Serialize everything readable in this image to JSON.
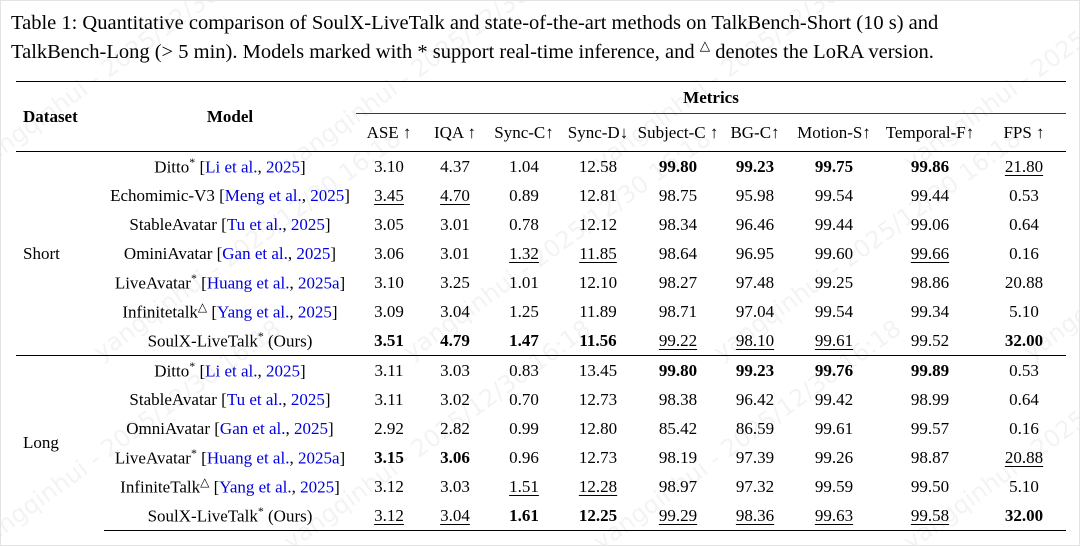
{
  "caption": {
    "segments": [
      {
        "text": "Table 1:  Quantitative comparison of SoulX-LiveTalk and state-of-the-art methods on TalkBench-Short (10 s) and"
      },
      {
        "br": true
      },
      {
        "text": "TalkBench-Long (> 5 min). Models marked with "
      },
      {
        "text": "*",
        "sup": false
      },
      {
        "text": " support real-time inference, and "
      },
      {
        "text": "△",
        "sup": true
      },
      {
        "text": " denotes the LoRA version."
      }
    ]
  },
  "watermark": {
    "text": "yangqinhui - 2025/12/30 16:18"
  },
  "colors": {
    "citation_blue": "#0000dd",
    "rule_black": "#000000"
  },
  "table": {
    "corner_headers": {
      "dataset": "Dataset",
      "model": "Model"
    },
    "metrics_group_label": "Metrics",
    "metric_columns": [
      "ASE ↑",
      "IQA ↑",
      "Sync-C↑",
      "Sync-D↓",
      "Subject-C ↑",
      "BG-C↑",
      "Motion-S↑",
      "Temporal-F↑",
      "FPS ↑"
    ],
    "blocks": [
      {
        "dataset": "Short",
        "rows": [
          {
            "model": "Ditto",
            "sup": "*",
            "cite": {
              "name": "Li et al.",
              "year": "2025"
            },
            "values": [
              "3.10",
              "4.37",
              "1.04",
              "12.58",
              "99.80",
              "99.23",
              "99.75",
              "99.86",
              "21.80"
            ],
            "styles": [
              "",
              "",
              "",
              "",
              "b",
              "b",
              "b",
              "b",
              "u"
            ]
          },
          {
            "model": "Echomimic-V3",
            "sup": "",
            "cite": {
              "name": "Meng et al.",
              "year": "2025"
            },
            "values": [
              "3.45",
              "4.70",
              "0.89",
              "12.81",
              "98.75",
              "95.98",
              "99.54",
              "99.44",
              "0.53"
            ],
            "styles": [
              "u",
              "u",
              "",
              "",
              "",
              "",
              "",
              "",
              ""
            ]
          },
          {
            "model": "StableAvatar",
            "sup": "",
            "cite": {
              "name": "Tu et al.",
              "year": "2025"
            },
            "values": [
              "3.05",
              "3.01",
              "0.78",
              "12.12",
              "98.34",
              "96.46",
              "99.44",
              "99.06",
              "0.64"
            ],
            "styles": [
              "",
              "",
              "",
              "",
              "",
              "",
              "",
              "",
              ""
            ]
          },
          {
            "model": "OminiAvatar",
            "sup": "",
            "cite": {
              "name": "Gan et al.",
              "year": "2025"
            },
            "values": [
              "3.06",
              "3.01",
              "1.32",
              "11.85",
              "98.64",
              "96.95",
              "99.60",
              "99.66",
              "0.16"
            ],
            "styles": [
              "",
              "",
              "u",
              "u",
              "",
              "",
              "",
              "u",
              ""
            ]
          },
          {
            "model": "LiveAvatar",
            "sup": "*",
            "cite": {
              "name": "Huang et al.",
              "year": "2025a"
            },
            "values": [
              "3.10",
              "3.25",
              "1.01",
              "12.10",
              "98.27",
              "97.48",
              "99.25",
              "98.86",
              "20.88"
            ],
            "styles": [
              "",
              "",
              "",
              "",
              "",
              "",
              "",
              "",
              ""
            ]
          },
          {
            "model": "Infinitetalk",
            "sup": "△",
            "cite": {
              "name": "Yang et al.",
              "year": "2025"
            },
            "values": [
              "3.09",
              "3.04",
              "1.25",
              "11.89",
              "98.71",
              "97.04",
              "99.54",
              "99.34",
              "5.10"
            ],
            "styles": [
              "",
              "",
              "",
              "",
              "",
              "",
              "",
              "",
              ""
            ]
          },
          {
            "model": "SoulX-LiveTalk",
            "sup": "*",
            "suffix": "(Ours)",
            "values": [
              "3.51",
              "4.79",
              "1.47",
              "11.56",
              "99.22",
              "98.10",
              "99.61",
              "99.52",
              "32.00"
            ],
            "styles": [
              "b",
              "b",
              "b",
              "b",
              "u",
              "u",
              "u",
              "",
              "b"
            ]
          }
        ]
      },
      {
        "dataset": "Long",
        "rows": [
          {
            "model": "Ditto",
            "sup": "*",
            "cite": {
              "name": "Li et al.",
              "year": "2025"
            },
            "values": [
              "3.11",
              "3.03",
              "0.83",
              "13.45",
              "99.80",
              "99.23",
              "99.76",
              "99.89",
              "0.53"
            ],
            "styles": [
              "",
              "",
              "",
              "",
              "b",
              "b",
              "b",
              "b",
              ""
            ]
          },
          {
            "model": "StableAvatar",
            "sup": "",
            "cite": {
              "name": "Tu et al.",
              "year": "2025"
            },
            "values": [
              "3.11",
              "3.02",
              "0.70",
              "12.73",
              "98.38",
              "96.42",
              "99.42",
              "98.99",
              "0.64"
            ],
            "styles": [
              "",
              "",
              "",
              "",
              "",
              "",
              "",
              "",
              ""
            ]
          },
          {
            "model": "OmniAvatar",
            "sup": "",
            "cite": {
              "name": "Gan et al.",
              "year": "2025"
            },
            "values": [
              "2.92",
              "2.82",
              "0.99",
              "12.80",
              "85.42",
              "86.59",
              "99.61",
              "99.57",
              "0.16"
            ],
            "styles": [
              "",
              "",
              "",
              "",
              "",
              "",
              "",
              "",
              ""
            ]
          },
          {
            "model": "LiveAvatar",
            "sup": "*",
            "cite": {
              "name": "Huang et al.",
              "year": "2025a"
            },
            "values": [
              "3.15",
              "3.06",
              "0.96",
              "12.73",
              "98.19",
              "97.39",
              "99.26",
              "98.87",
              "20.88"
            ],
            "styles": [
              "b",
              "b",
              "",
              "",
              "",
              "",
              "",
              "",
              "u"
            ]
          },
          {
            "model": "InfiniteTalk",
            "sup": "△",
            "cite": {
              "name": "Yang et al.",
              "year": "2025"
            },
            "values": [
              "3.12",
              "3.03",
              "1.51",
              "12.28",
              "98.97",
              "97.32",
              "99.59",
              "99.50",
              "5.10"
            ],
            "styles": [
              "",
              "",
              "u",
              "u",
              "",
              "",
              "",
              "",
              ""
            ]
          },
          {
            "model": "SoulX-LiveTalk",
            "sup": "*",
            "suffix": "(Ours)",
            "values": [
              "3.12",
              "3.04",
              "1.61",
              "12.25",
              "99.29",
              "98.36",
              "99.63",
              "99.58",
              "32.00"
            ],
            "styles": [
              "u",
              "u",
              "b",
              "b",
              "u",
              "u",
              "u",
              "u",
              "b"
            ]
          }
        ]
      }
    ]
  }
}
